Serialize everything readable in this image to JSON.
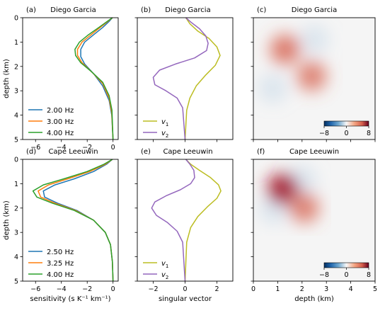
{
  "chart_data": [
    {
      "type": "line",
      "panel_label": "(a)",
      "title": "Diego Garcia",
      "ylabel": "depth (km)",
      "xlabel": "",
      "xlim": [
        -7,
        0.4
      ],
      "ylim": [
        5,
        0
      ],
      "xticks": [
        "−6",
        "−4",
        "−2",
        "0"
      ],
      "yticks": [
        "0",
        "1",
        "2",
        "3",
        "4",
        "5"
      ],
      "legend_position": "lower-left",
      "series": [
        {
          "name": "2.00 Hz",
          "color": "#1f77b4",
          "points": [
            [
              -0.05,
              0
            ],
            [
              -0.3,
              0.15
            ],
            [
              -0.8,
              0.4
            ],
            [
              -1.5,
              0.7
            ],
            [
              -2.2,
              1.0
            ],
            [
              -2.5,
              1.3
            ],
            [
              -2.5,
              1.6
            ],
            [
              -2.2,
              1.9
            ],
            [
              -1.5,
              2.3
            ],
            [
              -0.8,
              2.8
            ],
            [
              -0.3,
              3.4
            ],
            [
              -0.1,
              4.0
            ],
            [
              0,
              5
            ]
          ]
        },
        {
          "name": "3.00 Hz",
          "color": "#ff7f0e",
          "points": [
            [
              -0.05,
              0
            ],
            [
              -0.4,
              0.15
            ],
            [
              -1.0,
              0.4
            ],
            [
              -1.7,
              0.7
            ],
            [
              -2.4,
              1.0
            ],
            [
              -2.75,
              1.3
            ],
            [
              -2.75,
              1.55
            ],
            [
              -2.4,
              1.85
            ],
            [
              -1.6,
              2.25
            ],
            [
              -0.8,
              2.7
            ],
            [
              -0.3,
              3.3
            ],
            [
              -0.1,
              3.9
            ],
            [
              0,
              5
            ]
          ]
        },
        {
          "name": "4.00 Hz",
          "color": "#2ca02c",
          "points": [
            [
              -0.05,
              0
            ],
            [
              -0.45,
              0.15
            ],
            [
              -1.1,
              0.4
            ],
            [
              -1.9,
              0.7
            ],
            [
              -2.6,
              1.0
            ],
            [
              -2.95,
              1.3
            ],
            [
              -2.9,
              1.55
            ],
            [
              -2.5,
              1.85
            ],
            [
              -1.7,
              2.2
            ],
            [
              -0.8,
              2.65
            ],
            [
              -0.3,
              3.2
            ],
            [
              -0.08,
              3.8
            ],
            [
              0,
              5
            ]
          ]
        }
      ]
    },
    {
      "type": "line",
      "panel_label": "(b)",
      "title": "Diego Garcia",
      "xlabel": "",
      "xlim": [
        -3,
        3
      ],
      "ylim": [
        5,
        0
      ],
      "xticks": [],
      "legend_position": "lower-left",
      "series": [
        {
          "name": "v1",
          "label_base": "v",
          "label_sub": "1",
          "color": "#bcbd22",
          "points": [
            [
              0.05,
              0
            ],
            [
              0.3,
              0.25
            ],
            [
              0.8,
              0.55
            ],
            [
              1.5,
              0.85
            ],
            [
              2.0,
              1.2
            ],
            [
              2.2,
              1.55
            ],
            [
              1.9,
              1.95
            ],
            [
              1.3,
              2.35
            ],
            [
              0.7,
              2.8
            ],
            [
              0.3,
              3.3
            ],
            [
              0.1,
              3.8
            ],
            [
              0,
              5
            ]
          ]
        },
        {
          "name": "v2",
          "label_base": "v",
          "label_sub": "2",
          "color": "#9467bd",
          "points": [
            [
              0.05,
              0
            ],
            [
              0.4,
              0.2
            ],
            [
              0.9,
              0.45
            ],
            [
              1.3,
              0.75
            ],
            [
              1.45,
              1.05
            ],
            [
              1.35,
              1.35
            ],
            [
              0.6,
              1.65
            ],
            [
              -0.6,
              1.9
            ],
            [
              -1.6,
              2.15
            ],
            [
              -2.0,
              2.45
            ],
            [
              -1.9,
              2.75
            ],
            [
              -1.2,
              3.0
            ],
            [
              -0.5,
              3.3
            ],
            [
              -0.15,
              3.7
            ],
            [
              0,
              5
            ]
          ]
        }
      ]
    },
    {
      "type": "heatmap",
      "panel_label": "(c)",
      "title": "Diego Garcia",
      "xlabel": "",
      "xlim": [
        0,
        5
      ],
      "ylim": [
        5,
        0
      ],
      "colorbar": {
        "ticks": [
          "−8",
          "0",
          "8"
        ],
        "range": [
          -8,
          8
        ]
      },
      "blobs": [
        {
          "x": 1.3,
          "y": 1.3,
          "amplitude": 6.5
        },
        {
          "x": 2.4,
          "y": 2.4,
          "amplitude": 6.0
        },
        {
          "x": 2.5,
          "y": 0.9,
          "amplitude": -2.0
        },
        {
          "x": 0.8,
          "y": 2.9,
          "amplitude": -2.0
        }
      ]
    },
    {
      "type": "line",
      "panel_label": "(d)",
      "title": "Cape Leeuwin",
      "ylabel": "depth (km)",
      "xlabel": "sensitivity (s K⁻¹ km⁻¹)",
      "xlim": [
        -7,
        0.4
      ],
      "ylim": [
        5,
        0
      ],
      "xticks": [
        "−6",
        "−4",
        "−2",
        "0"
      ],
      "yticks": [
        "0",
        "1",
        "2",
        "3",
        "4",
        "5"
      ],
      "legend_position": "lower-left",
      "series": [
        {
          "name": "2.50 Hz",
          "color": "#1f77b4",
          "points": [
            [
              -0.05,
              0
            ],
            [
              -0.5,
              0.2
            ],
            [
              -1.5,
              0.5
            ],
            [
              -3.0,
              0.8
            ],
            [
              -4.5,
              1.05
            ],
            [
              -5.4,
              1.3
            ],
            [
              -5.3,
              1.55
            ],
            [
              -4.3,
              1.8
            ],
            [
              -2.8,
              2.1
            ],
            [
              -1.5,
              2.5
            ],
            [
              -0.6,
              3.0
            ],
            [
              -0.2,
              3.5
            ],
            [
              -0.05,
              4.2
            ],
            [
              0,
              5
            ]
          ]
        },
        {
          "name": "3.25 Hz",
          "color": "#ff7f0e",
          "points": [
            [
              -0.05,
              0
            ],
            [
              -0.6,
              0.2
            ],
            [
              -1.8,
              0.5
            ],
            [
              -3.5,
              0.8
            ],
            [
              -5.0,
              1.05
            ],
            [
              -5.8,
              1.3
            ],
            [
              -5.6,
              1.55
            ],
            [
              -4.5,
              1.8
            ],
            [
              -2.9,
              2.1
            ],
            [
              -1.5,
              2.5
            ],
            [
              -0.6,
              3.0
            ],
            [
              -0.2,
              3.5
            ],
            [
              -0.05,
              4.2
            ],
            [
              0,
              5
            ]
          ]
        },
        {
          "name": "4.00 Hz",
          "color": "#2ca02c",
          "points": [
            [
              -0.05,
              0
            ],
            [
              -0.7,
              0.2
            ],
            [
              -2.0,
              0.5
            ],
            [
              -3.8,
              0.8
            ],
            [
              -5.4,
              1.05
            ],
            [
              -6.2,
              1.3
            ],
            [
              -5.9,
              1.55
            ],
            [
              -4.7,
              1.8
            ],
            [
              -3.0,
              2.1
            ],
            [
              -1.5,
              2.5
            ],
            [
              -0.6,
              3.0
            ],
            [
              -0.2,
              3.5
            ],
            [
              -0.05,
              4.2
            ],
            [
              0,
              5
            ]
          ]
        }
      ]
    },
    {
      "type": "line",
      "panel_label": "(e)",
      "title": "Cape Leeuwin",
      "xlabel": "singular vector",
      "xlim": [
        -3,
        3
      ],
      "ylim": [
        5,
        0
      ],
      "xticks": [
        "−2",
        "0",
        "2"
      ],
      "legend_position": "lower-left",
      "series": [
        {
          "name": "v1",
          "label_base": "v",
          "label_sub": "1",
          "color": "#bcbd22",
          "points": [
            [
              0.05,
              0
            ],
            [
              0.35,
              0.2
            ],
            [
              0.9,
              0.45
            ],
            [
              1.6,
              0.75
            ],
            [
              2.1,
              1.05
            ],
            [
              2.25,
              1.3
            ],
            [
              2.0,
              1.6
            ],
            [
              1.4,
              1.95
            ],
            [
              0.8,
              2.35
            ],
            [
              0.35,
              2.8
            ],
            [
              0.1,
              3.4
            ],
            [
              0,
              5
            ]
          ]
        },
        {
          "name": "v2",
          "label_base": "v",
          "label_sub": "2",
          "color": "#9467bd",
          "points": [
            [
              0.05,
              0
            ],
            [
              0.3,
              0.2
            ],
            [
              0.55,
              0.45
            ],
            [
              0.6,
              0.75
            ],
            [
              0.35,
              1.0
            ],
            [
              -0.3,
              1.25
            ],
            [
              -1.2,
              1.5
            ],
            [
              -1.9,
              1.75
            ],
            [
              -2.1,
              2.0
            ],
            [
              -1.8,
              2.3
            ],
            [
              -1.1,
              2.6
            ],
            [
              -0.5,
              2.95
            ],
            [
              -0.15,
              3.4
            ],
            [
              0,
              5
            ]
          ]
        }
      ]
    },
    {
      "type": "heatmap",
      "panel_label": "(f)",
      "title": "Cape Leeuwin",
      "xlabel": "depth (km)",
      "xlim": [
        0,
        5
      ],
      "ylim": [
        5,
        0
      ],
      "xticks": [
        "0",
        "1",
        "2",
        "3",
        "4",
        "5"
      ],
      "colorbar": {
        "ticks": [
          "−8",
          "0",
          "8"
        ],
        "range": [
          -8,
          8
        ]
      },
      "blobs": [
        {
          "x": 1.2,
          "y": 1.2,
          "amplitude": 8.0
        },
        {
          "x": 2.1,
          "y": 2.0,
          "amplitude": 6.0
        },
        {
          "x": 2.0,
          "y": 0.85,
          "amplitude": -2.0
        },
        {
          "x": 0.85,
          "y": 2.05,
          "amplitude": -2.0
        }
      ]
    }
  ]
}
